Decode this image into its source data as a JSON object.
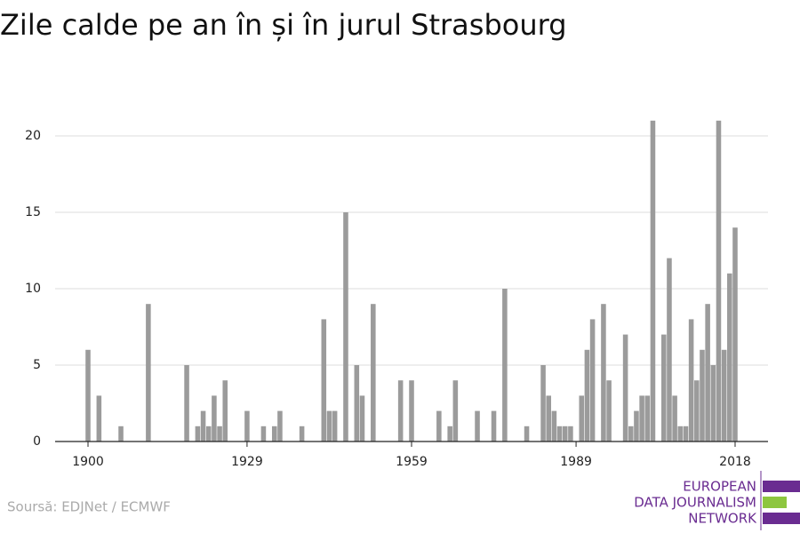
{
  "chart_data": {
    "type": "bar",
    "title": "Zile calde pe an în și în jurul Strasbourg",
    "x": [
      1900,
      1902,
      1906,
      1911,
      1918,
      1920,
      1921,
      1922,
      1923,
      1924,
      1925,
      1929,
      1932,
      1934,
      1935,
      1939,
      1943,
      1944,
      1945,
      1947,
      1949,
      1950,
      1952,
      1957,
      1959,
      1964,
      1966,
      1967,
      1971,
      1974,
      1976,
      1980,
      1983,
      1984,
      1985,
      1986,
      1987,
      1988,
      1990,
      1991,
      1992,
      1994,
      1995,
      1998,
      1999,
      2000,
      2001,
      2002,
      2003,
      2005,
      2006,
      2007,
      2008,
      2009,
      2010,
      2011,
      2012,
      2013,
      2014,
      2015,
      2016,
      2017,
      2018
    ],
    "values": [
      6,
      3,
      1,
      9,
      5,
      1,
      2,
      1,
      3,
      1,
      4,
      2,
      1,
      1,
      2,
      1,
      8,
      2,
      2,
      15,
      5,
      3,
      9,
      4,
      4,
      2,
      1,
      4,
      2,
      2,
      10,
      1,
      5,
      3,
      2,
      1,
      1,
      1,
      3,
      6,
      8,
      9,
      4,
      7,
      1,
      2,
      3,
      3,
      21,
      7,
      12,
      3,
      1,
      1,
      8,
      4,
      6,
      9,
      5,
      21,
      6,
      11,
      14
    ],
    "color": "#9b9b9b",
    "xlim": [
      1894,
      2024
    ],
    "xticks": [
      1900,
      1929,
      1959,
      1989,
      2018
    ],
    "ylim": [
      0,
      22
    ],
    "yticks": [
      0,
      5,
      10,
      15,
      20
    ],
    "grid": true,
    "source": "Soursă: EDJNet / ECMWF"
  },
  "logo": {
    "lines": [
      "EUROPEAN",
      "DATA JOURNALISM",
      "NETWORK"
    ]
  }
}
